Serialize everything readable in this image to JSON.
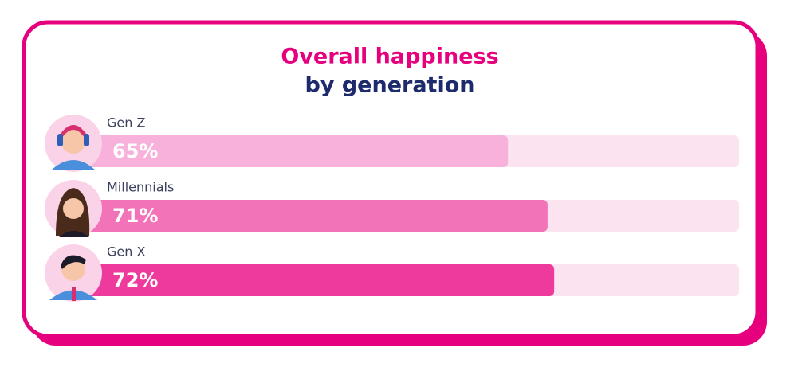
{
  "chart_data": {
    "type": "bar",
    "orientation": "horizontal",
    "title": "Overall happiness",
    "subtitle": "by generation",
    "categories": [
      "Gen Z",
      "Millennials",
      "Gen X"
    ],
    "values": [
      65,
      71,
      72
    ],
    "value_labels": [
      "65%",
      "71%",
      "72%"
    ],
    "colors": [
      "#f7b1da",
      "#f373b9",
      "#ee3a9c"
    ],
    "xlim": [
      0,
      100
    ]
  }
}
